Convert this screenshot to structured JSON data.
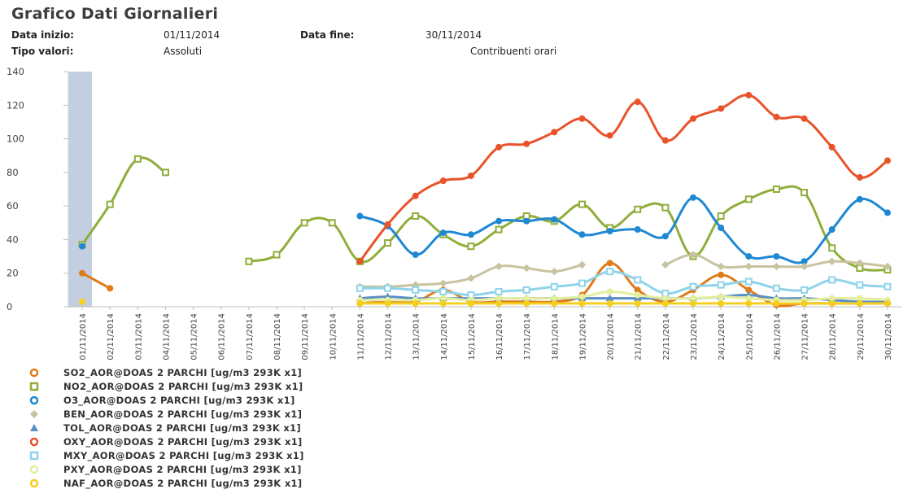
{
  "title": "Grafico Dati Giornalieri",
  "meta": {
    "start_label": "Data inizio:",
    "start_value": "01/11/2014",
    "end_label": "Data fine:",
    "end_value": "30/11/2014",
    "type_label": "Tipo valori:",
    "type_value": "Assoluti",
    "mode_value": "Contribuenti orari"
  },
  "chart_data": {
    "type": "line",
    "x": [
      "01/11/2014",
      "02/11/2014",
      "03/11/2014",
      "04/11/2014",
      "05/11/2014",
      "06/11/2014",
      "07/11/2014",
      "08/11/2014",
      "09/11/2014",
      "10/11/2014",
      "11/11/2014",
      "12/11/2014",
      "13/11/2014",
      "14/11/2014",
      "15/11/2014",
      "16/11/2014",
      "17/11/2014",
      "18/11/2014",
      "19/11/2014",
      "20/11/2014",
      "21/11/2014",
      "22/11/2014",
      "23/11/2014",
      "24/11/2014",
      "25/11/2014",
      "26/11/2014",
      "27/11/2014",
      "28/11/2014",
      "29/11/2014",
      "30/11/2014"
    ],
    "ylim": [
      0,
      140
    ],
    "yticks": [
      0,
      20,
      40,
      60,
      80,
      100,
      120,
      140
    ],
    "grid": false,
    "legend_position": "bottom",
    "series": [
      {
        "name": "SO2_AOR@DOAS 2 PARCHI [ug/m3 293K x1]",
        "color": "#e07b1a",
        "marker": "circle",
        "values": [
          20,
          11,
          null,
          null,
          null,
          null,
          null,
          null,
          null,
          null,
          2,
          3,
          3,
          10,
          3,
          3,
          3,
          3,
          7,
          26,
          10,
          3,
          10,
          19,
          10,
          1,
          2,
          2,
          2,
          2
        ]
      },
      {
        "name": "NO2_AOR@DOAS 2 PARCHI [ug/m3 293K x1]",
        "color": "#8fae3a",
        "marker": "square",
        "values": [
          37,
          61,
          88,
          80,
          null,
          null,
          27,
          31,
          50,
          50,
          27,
          38,
          54,
          43,
          36,
          46,
          54,
          51,
          61,
          47,
          58,
          59,
          30,
          54,
          64,
          70,
          68,
          35,
          23,
          22
        ]
      },
      {
        "name": "O3_AOR@DOAS 2 PARCHI [ug/m3 293K x1]",
        "color": "#1e88d2",
        "marker": "circle",
        "values": [
          36,
          null,
          null,
          null,
          null,
          null,
          null,
          null,
          null,
          null,
          54,
          48,
          31,
          44,
          43,
          51,
          51,
          52,
          43,
          45,
          46,
          42,
          65,
          47,
          30,
          30,
          27,
          46,
          64,
          56
        ]
      },
      {
        "name": "BEN_AOR@DOAS 2 PARCHI [ug/m3 293K x1]",
        "color": "#c8c3a0",
        "marker": "diamond",
        "values": [
          null,
          null,
          null,
          null,
          null,
          null,
          null,
          null,
          null,
          null,
          12,
          12,
          13,
          14,
          17,
          24,
          23,
          21,
          25,
          null,
          null,
          25,
          31,
          24,
          24,
          24,
          24,
          27,
          26,
          24
        ]
      },
      {
        "name": "TOL_AOR@DOAS 2 PARCHI [ug/m3 293K x1]",
        "color": "#5a8fc4",
        "marker": "triangle",
        "values": [
          null,
          null,
          null,
          null,
          null,
          null,
          null,
          null,
          null,
          null,
          5,
          6,
          5,
          5,
          5,
          5,
          5,
          5,
          5,
          5,
          5,
          5,
          5,
          6,
          7,
          5,
          5,
          4,
          3,
          3
        ]
      },
      {
        "name": "OXY_AOR@DOAS 2 PARCHI [ug/m3 293K x1]",
        "color": "#e8532a",
        "marker": "circle",
        "values": [
          null,
          null,
          null,
          null,
          null,
          null,
          null,
          null,
          null,
          null,
          27,
          49,
          66,
          75,
          78,
          95,
          97,
          104,
          112,
          102,
          122,
          99,
          112,
          118,
          126,
          113,
          112,
          95,
          77,
          87
        ]
      },
      {
        "name": "MXY_AOR@DOAS 2 PARCHI [ug/m3 293K x1]",
        "color": "#8fd3ea",
        "marker": "square",
        "values": [
          null,
          null,
          null,
          null,
          null,
          null,
          null,
          null,
          null,
          null,
          11,
          11,
          10,
          9,
          7,
          9,
          10,
          12,
          14,
          21,
          16,
          8,
          12,
          13,
          15,
          11,
          10,
          16,
          13,
          12
        ]
      },
      {
        "name": "PXY_AOR@DOAS 2 PARCHI [ug/m3 293K x1]",
        "color": "#e3ee9e",
        "marker": "circle",
        "values": [
          null,
          null,
          null,
          null,
          null,
          null,
          null,
          null,
          null,
          null,
          4,
          4,
          4,
          5,
          4,
          5,
          5,
          5,
          6,
          9,
          7,
          5,
          5,
          6,
          5,
          4,
          4,
          5,
          5,
          4
        ]
      },
      {
        "name": "NAF_AOR@DOAS 2 PARCHI [ug/m3 293K x1]",
        "color": "#f5cf1f",
        "marker": "circle",
        "values": [
          3,
          null,
          null,
          null,
          null,
          null,
          null,
          null,
          null,
          null,
          2,
          2,
          2,
          2,
          2,
          2,
          2,
          2,
          2,
          2,
          2,
          2,
          2,
          2,
          2,
          2,
          2,
          2,
          2,
          2
        ]
      }
    ]
  }
}
